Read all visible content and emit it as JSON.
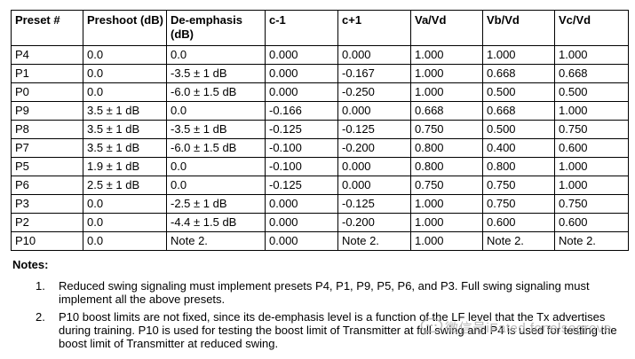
{
  "table": {
    "headers": [
      "Preset #",
      "Preshoot (dB)",
      "De-emphasis (dB)",
      "c-1",
      "c+1",
      "Va/Vd",
      "Vb/Vd",
      "Vc/Vd"
    ],
    "rows": [
      [
        "P4",
        "0.0",
        "0.0",
        "0.000",
        "0.000",
        "1.000",
        "1.000",
        "1.000"
      ],
      [
        "P1",
        "0.0",
        "-3.5 ± 1 dB",
        "0.000",
        "-0.167",
        "1.000",
        "0.668",
        "0.668"
      ],
      [
        "P0",
        "0.0",
        "-6.0 ± 1.5 dB",
        "0.000",
        "-0.250",
        "1.000",
        "0.500",
        "0.500"
      ],
      [
        "P9",
        "3.5 ± 1 dB",
        "0.0",
        "-0.166",
        "0.000",
        "0.668",
        "0.668",
        "1.000"
      ],
      [
        "P8",
        "3.5 ± 1 dB",
        "-3.5 ± 1 dB",
        "-0.125",
        "-0.125",
        "0.750",
        "0.500",
        "0.750"
      ],
      [
        "P7",
        "3.5 ± 1 dB",
        "-6.0 ± 1.5 dB",
        "-0.100",
        "-0.200",
        "0.800",
        "0.400",
        "0.600"
      ],
      [
        "P5",
        "1.9 ± 1 dB",
        "0.0",
        "-0.100",
        "0.000",
        "0.800",
        "0.800",
        "1.000"
      ],
      [
        "P6",
        "2.5 ± 1 dB",
        "0.0",
        "-0.125",
        "0.000",
        "0.750",
        "0.750",
        "1.000"
      ],
      [
        "P3",
        "0.0",
        "-2.5 ± 1 dB",
        "0.000",
        "-0.125",
        "1.000",
        "0.750",
        "0.750"
      ],
      [
        "P2",
        "0.0",
        "-4.4 ± 1.5 dB",
        "0.000",
        "-0.200",
        "1.000",
        "0.600",
        "0.600"
      ],
      [
        "P10",
        "0.0",
        "Note 2.",
        "0.000",
        "Note 2.",
        "1.000",
        "Note 2.",
        "Note 2."
      ]
    ],
    "border_color": "#000000"
  },
  "notes": {
    "title": "Notes:",
    "items": [
      {
        "number": "1.",
        "lines": [
          "Reduced swing signaling must implement presets P4, P1, P9, P5, P6, and P3. Full swing signaling must",
          "implement all the above presets."
        ]
      },
      {
        "number": "2.",
        "lines": [
          "P10 boost limits are not fixed, since its de-emphasis level is a function of the LF level that the Tx advertises",
          "during training. P10 is used for testing the boost limit of Transmitter at full swing and P4 is used for testing the",
          "boost limit of Transmitter at reduced swing."
        ]
      }
    ]
  },
  "watermark": {
    "icon": "speech-bubble-icon",
    "text": "微信号iFated fonelsegrove",
    "color": "#a6a6a6"
  }
}
